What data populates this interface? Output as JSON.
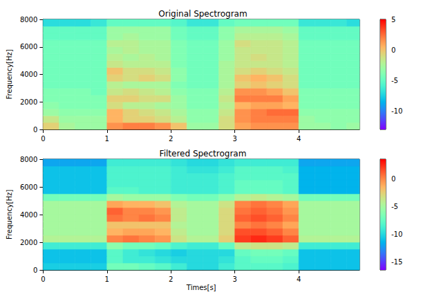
{
  "chart_data": [
    {
      "type": "heatmap",
      "title": "Original Spectrogram",
      "ylabel": "Frequency[Hz]",
      "x_edges": [
        0,
        0.25,
        0.5,
        0.75,
        1,
        1.25,
        1.5,
        1.75,
        2,
        2.25,
        2.5,
        2.75,
        3,
        3.25,
        3.5,
        3.75,
        4,
        4.25,
        4.5,
        4.75,
        5
      ],
      "y_edges": [
        0,
        500,
        1000,
        1500,
        2000,
        2500,
        3000,
        3500,
        4000,
        4500,
        5000,
        5500,
        6000,
        6500,
        7000,
        7500,
        8000
      ],
      "cells": [
        [
          -0.5,
          -2.5,
          -3,
          -3,
          1.5,
          2,
          2,
          1.5,
          0,
          -3,
          -3,
          -1,
          1,
          1.5,
          1.5,
          1.5,
          -3,
          -3,
          -3.5,
          -3
        ],
        [
          -1.5,
          -3,
          -3,
          -3,
          0.5,
          -0.5,
          -0.5,
          -1,
          -2,
          -3.5,
          -3.5,
          -1,
          1.5,
          2,
          2,
          2,
          -3,
          -3.5,
          -3.5,
          -3.5
        ],
        [
          -3,
          -3.5,
          -3.5,
          -3.5,
          0.5,
          -0.5,
          -1,
          -1.5,
          -2.5,
          -3.5,
          -3.5,
          -1.5,
          1.5,
          2,
          2.5,
          2.5,
          -3.5,
          -3.5,
          -3.5,
          -3.5
        ],
        [
          -3.5,
          -4,
          -4,
          -4,
          -1,
          -2,
          -2,
          -2.5,
          -3,
          -4,
          -4,
          -2,
          0.5,
          1,
          1,
          0.5,
          -4,
          -4,
          -4,
          -4
        ],
        [
          -4,
          -4,
          -4,
          -4,
          -0.5,
          -0.5,
          -1,
          -1,
          -3,
          -4,
          -4,
          -1.5,
          2,
          2,
          2,
          1,
          -4,
          -4,
          -4,
          -4
        ],
        [
          -4,
          -4,
          -4,
          -4.5,
          -1.5,
          -1,
          -1.5,
          -2,
          -3.5,
          -4,
          -4,
          -2,
          1.5,
          1.5,
          1,
          0,
          -4,
          -4,
          -4,
          -4
        ],
        [
          -4.5,
          -4.5,
          -4.5,
          -4.5,
          -2,
          -2.5,
          -2.5,
          -2.5,
          -4,
          -4.5,
          -4.5,
          -2.5,
          -0.5,
          0,
          -0.5,
          -1,
          -4.5,
          -4.5,
          -4.5,
          -4.5
        ],
        [
          -4.5,
          -4.5,
          -4.5,
          -4.5,
          -0.5,
          -1,
          -0.5,
          -1,
          -3.5,
          -4.5,
          -4.5,
          -2.5,
          0,
          0.5,
          0,
          -1,
          -4.5,
          -4.5,
          -4.5,
          -4.5
        ],
        [
          -4.5,
          -4.5,
          -4.5,
          -4.5,
          0,
          -1,
          -1,
          -1.5,
          -3.5,
          -4.5,
          -4.5,
          -2.5,
          -1,
          -0.5,
          -1,
          -1.5,
          -4.5,
          -4.5,
          -4.5,
          -4.5
        ],
        [
          -4.5,
          -4.5,
          -4.5,
          -4.5,
          -1.5,
          -2,
          -2,
          -2,
          -4,
          -4.5,
          -4.5,
          -2.5,
          -1.5,
          -1.5,
          -1.5,
          -2,
          -4.5,
          -4.5,
          -4.5,
          -4.5
        ],
        [
          -4.5,
          -4.5,
          -4.5,
          -4.5,
          -2,
          -2.5,
          -2,
          -2.5,
          -4,
          -4.5,
          -4.5,
          -3,
          -1.5,
          -1,
          -1.5,
          -2,
          -4.5,
          -4.5,
          -4.5,
          -4.5
        ],
        [
          -4.5,
          -4.5,
          -4.5,
          -4.5,
          -2.5,
          -2,
          -2.5,
          -2.5,
          -4,
          -4.5,
          -4.5,
          -3,
          -1.5,
          -1.5,
          -1.5,
          -2,
          -4.5,
          -4.5,
          -4.5,
          -4.5
        ],
        [
          -4.5,
          -4.5,
          -4.5,
          -4.5,
          -2,
          -2,
          -2.5,
          -2.5,
          -4,
          -4.5,
          -4.5,
          -3,
          -1,
          -1.5,
          -1.5,
          -2,
          -4.5,
          -4.5,
          -4.5,
          -4.5
        ],
        [
          -5,
          -5,
          -5,
          -5,
          -3,
          -2.5,
          -3,
          -3,
          -4.5,
          -5,
          -5,
          -3.5,
          -2,
          -2,
          -2,
          -2.5,
          -5,
          -5,
          -5,
          -5
        ],
        [
          -5,
          -5,
          -5,
          -5,
          -3,
          -3,
          -3,
          -3,
          -4.5,
          -5,
          -5,
          -3.5,
          -2.5,
          -2.5,
          -2.5,
          -3,
          -5,
          -5,
          -5,
          -5
        ],
        [
          -7,
          -7,
          -7,
          -6.5,
          -5,
          -5,
          -5,
          -5,
          -5.5,
          -6.5,
          -6.5,
          -5,
          -4.5,
          -4.5,
          -4.5,
          -4.5,
          -6.5,
          -6.5,
          -6.5,
          -7
        ]
      ],
      "xlim": [
        0,
        4.95
      ],
      "xticks": [
        0,
        1,
        2,
        3,
        4
      ],
      "ylim": [
        0,
        8000
      ],
      "yticks": [
        0,
        2000,
        4000,
        6000,
        8000
      ],
      "colorbar": {
        "range": [
          -13,
          5
        ],
        "ticks": [
          -10,
          -5,
          0,
          5
        ]
      }
    },
    {
      "type": "heatmap",
      "title": "Filtered Spectrogram",
      "xlabel": "Times[s]",
      "ylabel": "Frequency[Hz]",
      "x_edges": [
        0,
        0.25,
        0.5,
        0.75,
        1,
        1.25,
        1.5,
        1.75,
        2,
        2.25,
        2.5,
        2.75,
        3,
        3.25,
        3.5,
        3.75,
        4,
        4.25,
        4.5,
        4.75,
        5
      ],
      "y_edges": [
        0,
        500,
        1000,
        1500,
        2000,
        2500,
        3000,
        3500,
        4000,
        4500,
        5000,
        5500,
        6000,
        6500,
        7000,
        7500,
        8000
      ],
      "cells": [
        [
          -10.5,
          -10.5,
          -10.5,
          -10.5,
          -7,
          -7,
          -7.5,
          -8,
          -9,
          -10,
          -10,
          -9,
          -8,
          -8,
          -8,
          -8.5,
          -11,
          -11,
          -11,
          -11
        ],
        [
          -11,
          -11,
          -11,
          -11,
          -8,
          -9,
          -9,
          -9.5,
          -10,
          -10,
          -10,
          -9.5,
          -8,
          -7.5,
          -7.5,
          -8,
          -11,
          -11,
          -11,
          -11
        ],
        [
          -11,
          -11,
          -11,
          -11,
          -8,
          -9,
          -9.5,
          -10,
          -10.5,
          -10,
          -10,
          -10,
          -7.5,
          -7,
          -7,
          -7.5,
          -11,
          -11,
          -11,
          -11
        ],
        [
          -9,
          -9,
          -9,
          -9,
          -6,
          -7,
          -7,
          -7.5,
          -8.5,
          -9,
          -9,
          -7.5,
          -4,
          -3.5,
          -3.5,
          -4,
          -9,
          -9,
          -9,
          -9
        ],
        [
          -4.5,
          -4.5,
          -4.5,
          -4.5,
          0,
          0.5,
          0,
          -0.5,
          -3.5,
          -4.5,
          -4.5,
          -2.5,
          2,
          2.5,
          2,
          1,
          -4.5,
          -4.5,
          -4.5,
          -4.5
        ],
        [
          -5,
          -5,
          -5,
          -5,
          -1.5,
          -1,
          -1,
          -1.5,
          -4,
          -5,
          -5,
          -3,
          1.5,
          1.5,
          1,
          0,
          -5,
          -5,
          -5,
          -5
        ],
        [
          -5,
          -5,
          -5,
          -5,
          -2,
          -2,
          -2,
          -2,
          -4.5,
          -5,
          -5,
          -3,
          0,
          0.5,
          0,
          -1,
          -5,
          -5,
          -5,
          -5
        ],
        [
          -5,
          -5,
          -5,
          -5,
          0.5,
          0,
          0.5,
          0,
          -4,
          -5,
          -5,
          -3,
          1,
          1.5,
          1,
          0,
          -5,
          -5,
          -5,
          -5
        ],
        [
          -5,
          -5,
          -5,
          -5,
          1,
          0,
          0,
          -0.5,
          -4,
          -5,
          -5,
          -3,
          0.5,
          1,
          0.5,
          -0.5,
          -5,
          -5,
          -5,
          -5
        ],
        [
          -5,
          -5,
          -5,
          -5,
          -1,
          -1.5,
          -1.5,
          -2,
          -4.5,
          -5,
          -5,
          -3.5,
          0,
          0.5,
          0,
          -1,
          -5,
          -5,
          -5,
          -5
        ],
        [
          -7,
          -7,
          -7,
          -7,
          -5,
          -5.5,
          -5.5,
          -5.5,
          -6.5,
          -7,
          -7,
          -6,
          -4.5,
          -4,
          -4.5,
          -5,
          -7,
          -7,
          -7,
          -7
        ],
        [
          -11,
          -11,
          -11,
          -11,
          -8,
          -8,
          -8.5,
          -8.5,
          -9,
          -9,
          -9,
          -8.5,
          -7.5,
          -7.5,
          -7.5,
          -8,
          -11.5,
          -11.5,
          -11.5,
          -11.5
        ],
        [
          -11,
          -11,
          -11,
          -11,
          -8.5,
          -8.5,
          -8.5,
          -8.5,
          -9,
          -9,
          -9,
          -8.5,
          -7.5,
          -7.5,
          -7.5,
          -8,
          -11.5,
          -11.5,
          -11.5,
          -11.5
        ],
        [
          -11,
          -11,
          -11,
          -11,
          -8.5,
          -8.5,
          -8.5,
          -8.5,
          -9,
          -9,
          -9,
          -8.5,
          -8,
          -8,
          -8,
          -8,
          -11.5,
          -11.5,
          -11.5,
          -11.5
        ],
        [
          -11,
          -11,
          -11,
          -11,
          -8.5,
          -8.5,
          -8.5,
          -8.5,
          -9,
          -9.5,
          -9.5,
          -9,
          -8,
          -8,
          -8,
          -8.5,
          -11.5,
          -11.5,
          -11.5,
          -11.5
        ],
        [
          -12,
          -12,
          -12,
          -12,
          -9,
          -9,
          -9,
          -9,
          -9.5,
          -10,
          -10,
          -9.5,
          -9,
          -9,
          -9,
          -9,
          -12,
          -12,
          -12,
          -12
        ]
      ],
      "xlim": [
        0,
        4.95
      ],
      "xticks": [
        0,
        1,
        2,
        3,
        4
      ],
      "ylim": [
        0,
        8000
      ],
      "yticks": [
        0,
        2000,
        4000,
        6000,
        8000
      ],
      "colorbar": {
        "range": [
          -16.5,
          3.5
        ],
        "ticks": [
          -15,
          -10,
          -5,
          0
        ]
      }
    }
  ]
}
